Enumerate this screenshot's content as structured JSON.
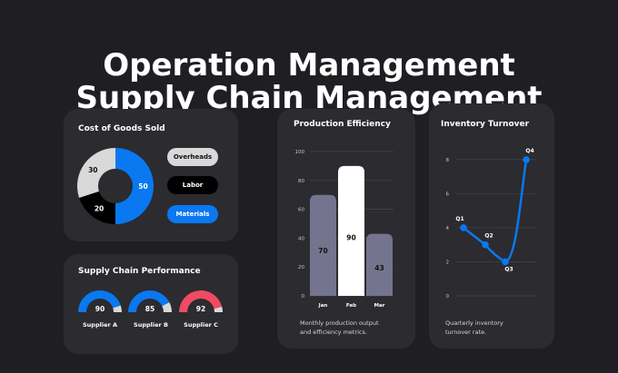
{
  "header": {
    "line1": "Operation Management",
    "line2": "Supply Chain Management"
  },
  "cogs": {
    "title": "Cost of Goods Sold",
    "legend": [
      {
        "label": "Overheads",
        "bg": "#d9d9d9",
        "fg": "#111111"
      },
      {
        "label": "Labor",
        "bg": "#000000",
        "fg": "#ffffff"
      },
      {
        "label": "Materials",
        "bg": "#0a78f0",
        "fg": "#ffffff"
      }
    ]
  },
  "supply": {
    "title": "Supply Chain Performance",
    "gauges": [
      {
        "label": "Supplier A",
        "value": 90,
        "color": "#0a78f0"
      },
      {
        "label": "Supplier B",
        "value": 85,
        "color": "#0a78f0"
      },
      {
        "label": "Supplier C",
        "value": 92,
        "color": "#ef4b63"
      }
    ]
  },
  "production": {
    "title": "Production Efficiency",
    "caption_line1": "Monthly production output",
    "caption_line2": "and efficiency metrics."
  },
  "inventory": {
    "title": "Inventory Turnover",
    "caption_line1": "Quarterly inventory",
    "caption_line2": "turnover rate."
  },
  "colors": {
    "blue": "#0a78f0",
    "gray_bar": "#74748f",
    "card": "#2b2b30",
    "background": "#1f1f23"
  },
  "chart_data": [
    {
      "type": "pie",
      "title": "Cost of Goods Sold",
      "donut": true,
      "slices": [
        {
          "label": "Materials",
          "value": 50,
          "color": "#0a78f0"
        },
        {
          "label": "Labor",
          "value": 20,
          "color": "#000000"
        },
        {
          "label": "Overheads",
          "value": 30,
          "color": "#d9d9d9"
        }
      ]
    },
    {
      "type": "bar",
      "title": "Production Efficiency",
      "categories": [
        "Jan",
        "Feb",
        "Mar"
      ],
      "values": [
        70,
        90,
        43
      ],
      "colors": [
        "#74748f",
        "#ffffff",
        "#74748f"
      ],
      "ylim": [
        0,
        100
      ],
      "yticks": [
        0,
        20,
        40,
        60,
        80,
        100
      ],
      "grid": true
    },
    {
      "type": "line",
      "title": "Inventory Turnover",
      "categories": [
        "Q1",
        "Q2",
        "Q3",
        "Q4"
      ],
      "values": [
        4,
        3,
        2,
        8
      ],
      "ylim": [
        0,
        9
      ],
      "yticks": [
        0,
        2,
        4,
        6,
        8
      ],
      "grid": true,
      "color": "#0a78f0"
    }
  ]
}
